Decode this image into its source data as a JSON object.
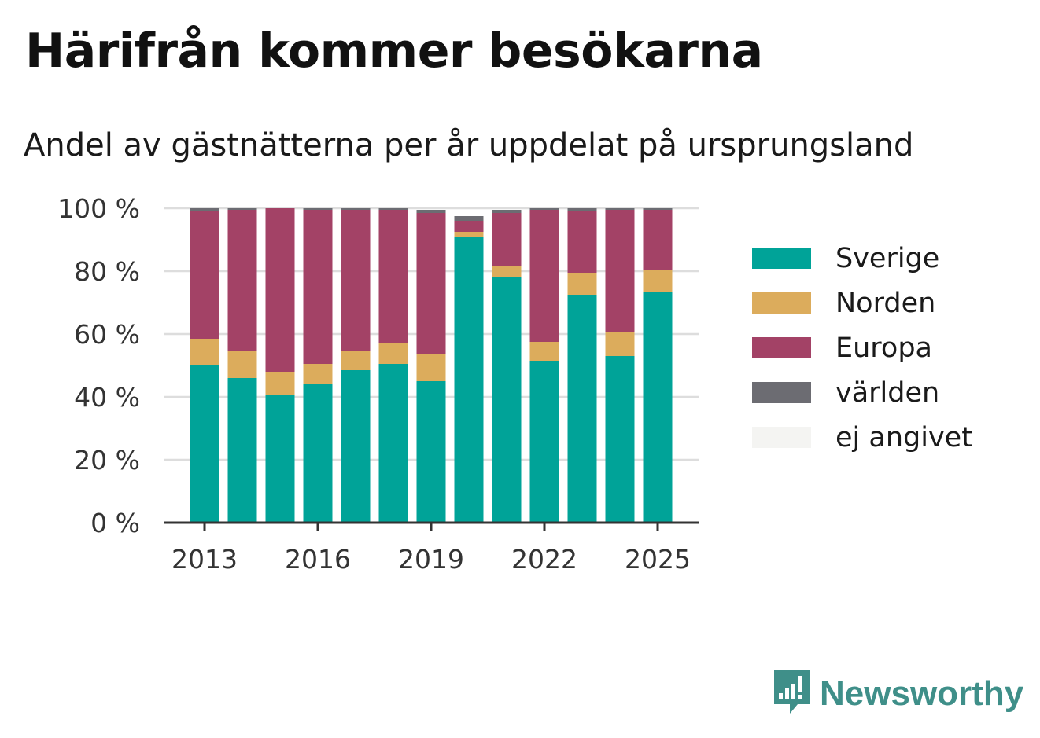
{
  "title": "Härifrån kommer besökarna",
  "subtitle": "Andel av gästnätterna per år uppdelat på ursprungsland",
  "brand": {
    "name": "Newsworthy",
    "icon": "newsworthy-logo-icon",
    "color": "#3f8f89"
  },
  "chart_data": {
    "type": "bar",
    "stacked": true,
    "x": [
      2013,
      2014,
      2015,
      2016,
      2017,
      2018,
      2019,
      2020,
      2021,
      2022,
      2023,
      2024,
      2025
    ],
    "x_ticks": [
      "2013",
      "2016",
      "2019",
      "2022",
      "2025"
    ],
    "y_ticks": [
      "0 %",
      "20 %",
      "40 %",
      "60 %",
      "80 %",
      "100 %"
    ],
    "ylim": [
      0,
      100
    ],
    "grid": true,
    "legend_position": "right",
    "series": [
      {
        "name": "Sverige",
        "color": "#00a398",
        "values": [
          50,
          46,
          40.5,
          44,
          48.5,
          50.5,
          45,
          91,
          78,
          51.5,
          72.5,
          53,
          73.5
        ]
      },
      {
        "name": "Norden",
        "color": "#dcac5c",
        "values": [
          8.5,
          8.5,
          7.5,
          6.5,
          6,
          6.5,
          8.5,
          1.5,
          3.5,
          6,
          7,
          7.5,
          7
        ]
      },
      {
        "name": "Europa",
        "color": "#a34266",
        "values": [
          40.5,
          45,
          52,
          49,
          45,
          42.5,
          45,
          3.5,
          17,
          42,
          19.5,
          39,
          19
        ]
      },
      {
        "name": "världen",
        "color": "#6c6c72",
        "values": [
          1,
          0.5,
          0,
          0.5,
          0.5,
          0.5,
          1,
          1.5,
          1,
          0.5,
          1,
          0.5,
          0.5
        ]
      },
      {
        "name": "ej angivet",
        "color": "#f4f4f2",
        "values": [
          0,
          0,
          0,
          0,
          0,
          0,
          0,
          0,
          0,
          0,
          0,
          0,
          0
        ]
      }
    ]
  }
}
